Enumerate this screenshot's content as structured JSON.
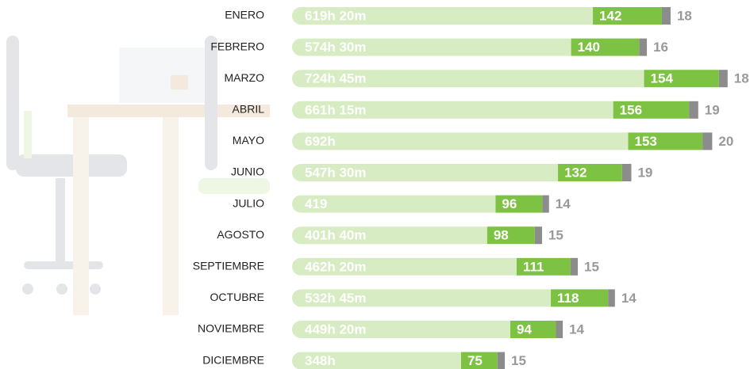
{
  "chart_data": {
    "type": "bar",
    "orientation": "horizontal",
    "stacked": true,
    "categories": [
      "ENERO",
      "FEBRERO",
      "MARZO",
      "ABRIL",
      "MAYO",
      "JUNIO",
      "JULIO",
      "AGOSTO",
      "SEPTIEMBRE",
      "OCTUBRE",
      "NOVIEMBRE",
      "DICIEMBRE"
    ],
    "series": [
      {
        "color": "#d7ecc3",
        "values": [
          619.333,
          574.5,
          724.75,
          661.25,
          692,
          547.5,
          419,
          401.667,
          462.333,
          532.75,
          449.333,
          348
        ],
        "value_labels": [
          "619h 20m",
          "574h 30m",
          "724h 45m",
          "661h 15m",
          "692h",
          "547h 30m",
          "419",
          "401h 40m",
          "462h 20m",
          "532h 45m",
          "449h 20m",
          "348h"
        ]
      },
      {
        "color": "#7dc242",
        "values": [
          142,
          140,
          154,
          156,
          153,
          132,
          96,
          98,
          111,
          118,
          94,
          75
        ]
      },
      {
        "color": "#8c8c8c",
        "values": [
          18,
          16,
          18,
          19,
          20,
          19,
          14,
          15,
          15,
          14,
          14,
          15
        ]
      }
    ]
  }
}
